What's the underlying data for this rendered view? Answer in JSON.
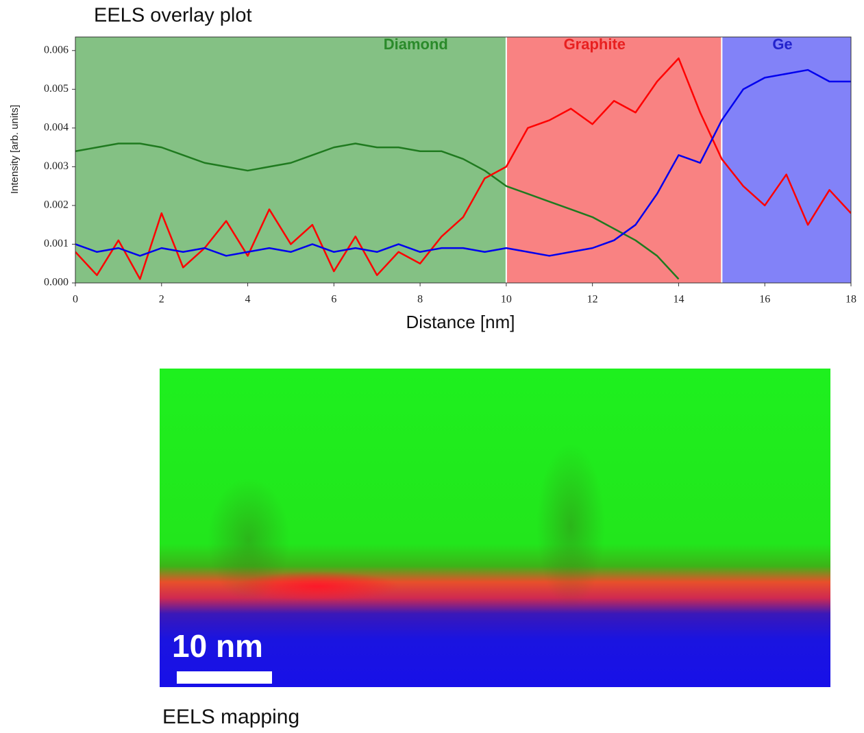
{
  "chart_data": {
    "type": "line",
    "title": "EELS overlay plot",
    "xlabel": "Distance [nm]",
    "ylabel": "Intensity [arb. units]",
    "x": [
      0,
      0.5,
      1,
      1.5,
      2,
      2.5,
      3,
      3.5,
      4,
      4.5,
      5,
      5.5,
      6,
      6.5,
      7,
      7.5,
      8,
      8.5,
      9,
      9.5,
      10,
      10.5,
      11,
      11.5,
      12,
      12.5,
      13,
      13.5,
      14,
      14.5,
      15,
      15.5,
      16,
      16.5,
      17,
      17.5,
      18
    ],
    "series": [
      {
        "name": "Diamond",
        "color": "#1f7a1f",
        "values": [
          0.0034,
          0.0035,
          0.0036,
          0.0036,
          0.0035,
          0.0033,
          0.0031,
          0.003,
          0.0029,
          0.003,
          0.0031,
          0.0033,
          0.0035,
          0.0036,
          0.0035,
          0.0035,
          0.0034,
          0.0034,
          0.0032,
          0.0029,
          0.0025,
          0.0023,
          0.0021,
          0.0019,
          0.0017,
          0.0014,
          0.0011,
          0.0007,
          0.0001,
          null,
          null,
          null,
          null,
          null,
          null,
          null,
          null
        ]
      },
      {
        "name": "Graphite",
        "color": "#ff0000",
        "values": [
          0.0008,
          0.0002,
          0.0011,
          0.0001,
          0.0018,
          0.0004,
          0.0009,
          0.0016,
          0.0007,
          0.0019,
          0.001,
          0.0015,
          0.0003,
          0.0012,
          0.0002,
          0.0008,
          0.0005,
          0.0012,
          0.0017,
          0.0027,
          0.003,
          0.004,
          0.0042,
          0.0045,
          0.0041,
          0.0047,
          0.0044,
          0.0052,
          0.0058,
          0.0044,
          0.0032,
          0.0025,
          0.002,
          0.0028,
          0.0015,
          0.0024,
          0.0018
        ]
      },
      {
        "name": "Ge",
        "color": "#0000ee",
        "values": [
          0.001,
          0.0008,
          0.0009,
          0.0007,
          0.0009,
          0.0008,
          0.0009,
          0.0007,
          0.0008,
          0.0009,
          0.0008,
          0.001,
          0.0008,
          0.0009,
          0.0008,
          0.001,
          0.0008,
          0.0009,
          0.0009,
          0.0008,
          0.0009,
          0.0008,
          0.0007,
          0.0008,
          0.0009,
          0.0011,
          0.0015,
          0.0023,
          0.0033,
          0.0031,
          0.0042,
          0.005,
          0.0053,
          0.0054,
          0.0055,
          0.0052,
          0.0052
        ]
      }
    ],
    "regions": [
      {
        "name": "Diamond",
        "start": 0,
        "end": 10,
        "color": "#84c184",
        "label_color": "#2a8a2a"
      },
      {
        "name": "Graphite",
        "start": 10,
        "end": 15,
        "color": "#f98282",
        "label_color": "#e82020"
      },
      {
        "name": "Ge",
        "start": 15,
        "end": 18,
        "color": "#8282f8",
        "label_color": "#2222cc"
      }
    ],
    "xlim": [
      0,
      18
    ],
    "xticks": [
      0,
      2,
      4,
      6,
      8,
      10,
      12,
      14,
      16,
      18
    ],
    "ylim": [
      0,
      0.00635
    ],
    "yticks": [
      {
        "value": 0,
        "label": "0.000"
      },
      0.001,
      0.002,
      0.003,
      0.004,
      0.005,
      0.006
    ]
  },
  "image": {
    "scale_bar": "10 nm",
    "caption": "EELS mapping"
  }
}
